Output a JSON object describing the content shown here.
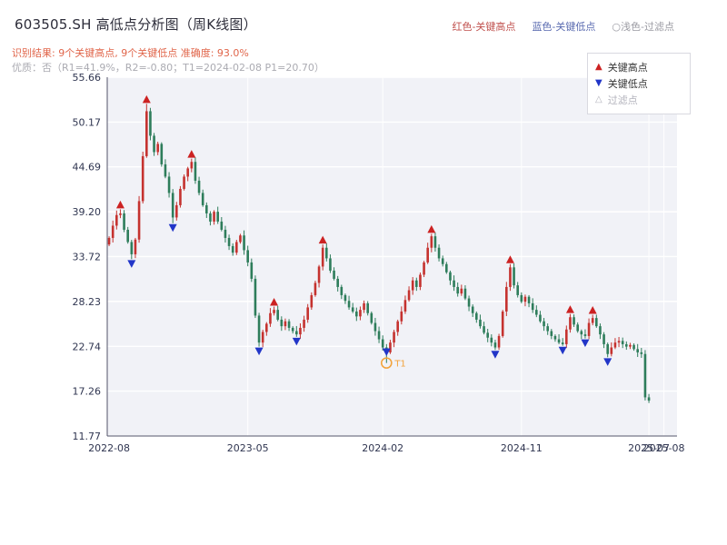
{
  "header": {
    "title": "603505.SH 高低点分析图（周K线图）",
    "legend": [
      {
        "label": "红色-关键高点",
        "color": "#c0504d"
      },
      {
        "label": "蓝色-关键低点",
        "color": "#5a6bb0"
      },
      {
        "label": "○浅色-过滤点",
        "color": "#9a9aa2"
      }
    ],
    "result_line": "识别结果: 9个关键高点, 9个关键低点  准确度: 93.0%",
    "quality_line": "优质：否（R1=41.9%，R2=-0.80；T1=2024-02-08 P1=20.70）"
  },
  "chart_legend": {
    "items": [
      {
        "glyph": "▲",
        "label": "关键高点",
        "color": "#cc2222"
      },
      {
        "glyph": "▼",
        "label": "关键低点",
        "color": "#2236c8"
      },
      {
        "glyph": "△",
        "label": "过滤点",
        "color": "#b3b3bc"
      }
    ]
  },
  "chart_data": {
    "type": "candlestick",
    "title": "603505.SH 高低点分析图（周K线图）",
    "period": "weekly",
    "ylim": [
      11.77,
      55.66
    ],
    "y_ticks": [
      "55.66",
      "50.17",
      "44.69",
      "39.20",
      "33.72",
      "28.23",
      "22.74",
      "17.26",
      "11.77"
    ],
    "x_ticks": [
      {
        "week": 1,
        "label": "2022-08"
      },
      {
        "week": 38,
        "label": "2023-05"
      },
      {
        "week": 74,
        "label": "2024-02"
      },
      {
        "week": 111,
        "label": "2024-11"
      },
      {
        "week": 145,
        "label": "2025-07"
      },
      {
        "week": 149,
        "label": "2025-08"
      }
    ],
    "colors": {
      "up": "#c5322f",
      "down": "#2e7d5b",
      "key_high": "#cc2222",
      "key_low": "#2236c8",
      "filtered": "#b3b3bc",
      "t1": "#f2a33c",
      "plot_bg": "#f1f2f7",
      "grid": "#ffffff",
      "axis": "#52536a",
      "tick_text": "#2f3550"
    },
    "closes": [
      36.0,
      37.5,
      38.8,
      39.0,
      37.0,
      35.5,
      34.0,
      35.8,
      40.5,
      46.0,
      51.5,
      48.5,
      46.5,
      47.5,
      45.0,
      43.5,
      41.5,
      38.5,
      40.0,
      42.0,
      43.5,
      44.5,
      45.3,
      43.0,
      41.5,
      40.0,
      39.0,
      38.0,
      39.2,
      38.0,
      37.0,
      36.0,
      35.0,
      34.2,
      35.5,
      36.3,
      34.5,
      33.0,
      31.0,
      26.5,
      23.2,
      24.5,
      25.5,
      26.8,
      27.2,
      26.0,
      25.2,
      25.8,
      25.0,
      24.6,
      24.2,
      25.0,
      26.0,
      27.5,
      29.0,
      30.5,
      32.5,
      34.8,
      33.5,
      32.0,
      31.0,
      30.0,
      29.0,
      28.3,
      27.5,
      27.0,
      26.4,
      27.2,
      28.0,
      26.8,
      25.6,
      24.6,
      23.6,
      22.6,
      22.0,
      23.2,
      24.5,
      25.8,
      27.0,
      28.4,
      29.6,
      30.8,
      30.0,
      31.5,
      33.0,
      34.8,
      36.2,
      34.8,
      33.5,
      32.8,
      31.8,
      30.8,
      30.0,
      29.2,
      29.8,
      28.6,
      27.6,
      26.8,
      26.0,
      25.2,
      24.4,
      23.8,
      23.2,
      22.6,
      24.0,
      27.0,
      30.0,
      32.4,
      30.2,
      29.0,
      28.2,
      28.8,
      28.0,
      27.2,
      26.6,
      25.8,
      25.2,
      24.6,
      24.0,
      23.6,
      23.2,
      23.0,
      24.8,
      26.3,
      25.4,
      24.6,
      24.2,
      24.0,
      25.6,
      26.2,
      25.2,
      24.2,
      23.0,
      21.8,
      22.6,
      23.2,
      23.4,
      23.0,
      22.7,
      22.9,
      22.4,
      22.0,
      21.8,
      16.5,
      16.1
    ],
    "first_open": 35.2,
    "total_slots": 152,
    "key_highs": [
      {
        "week": 4,
        "price": 40.0
      },
      {
        "week": 11,
        "price": 52.9
      },
      {
        "week": 23,
        "price": 46.2
      },
      {
        "week": 45,
        "price": 28.1
      },
      {
        "week": 58,
        "price": 35.7
      },
      {
        "week": 87,
        "price": 37.0
      },
      {
        "week": 108,
        "price": 33.3
      },
      {
        "week": 124,
        "price": 27.2
      },
      {
        "week": 130,
        "price": 27.1
      }
    ],
    "key_lows": [
      {
        "week": 7,
        "price": 32.9
      },
      {
        "week": 18,
        "price": 37.3
      },
      {
        "week": 41,
        "price": 22.2
      },
      {
        "week": 51,
        "price": 23.4
      },
      {
        "week": 75,
        "price": 22.1
      },
      {
        "week": 104,
        "price": 21.8
      },
      {
        "week": 122,
        "price": 22.3
      },
      {
        "week": 128,
        "price": 23.2
      },
      {
        "week": 134,
        "price": 20.9
      }
    ],
    "t1_marker": {
      "week": 75,
      "price": 20.7,
      "label": "T1"
    }
  }
}
